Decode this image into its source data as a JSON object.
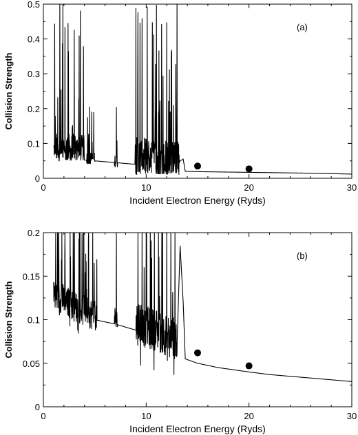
{
  "chart_data": [
    {
      "type": "line",
      "panel_label": "(a)",
      "xlabel": "Incident Electron Energy (Ryds)",
      "ylabel": "Collision Strength",
      "xlim": [
        0,
        30
      ],
      "ylim": [
        0,
        0.5
      ],
      "x_ticks": [
        0,
        10,
        20,
        30
      ],
      "y_ticks": [
        0,
        0.1,
        0.2,
        0.3,
        0.4,
        0.5
      ],
      "x_tick_labels": [
        "0",
        "10",
        "20",
        "30"
      ],
      "y_tick_labels": [
        "0",
        "0.1",
        "0.2",
        "0.3",
        "0.4",
        "0.5"
      ],
      "grid": false,
      "background": {
        "x": [
          1.0,
          3.0,
          5.0,
          7.0,
          9.0,
          11.0,
          12.0,
          13.0,
          13.3,
          13.6,
          13.8,
          15,
          20,
          25,
          30
        ],
        "y": [
          0.058,
          0.055,
          0.05,
          0.045,
          0.04,
          0.035,
          0.03,
          0.028,
          0.05,
          0.055,
          0.02,
          0.019,
          0.017,
          0.015,
          0.012
        ]
      },
      "resonance_regions": [
        {
          "x_from": 1.0,
          "x_to": 4.0,
          "y_low": 0.05,
          "y_high": 0.5,
          "peaks": [
            1.1,
            1.6,
            1.9,
            2.1,
            2.4,
            3.0,
            3.6
          ]
        },
        {
          "x_from": 4.2,
          "x_to": 5.0,
          "y_low": 0.04,
          "y_high": 0.19,
          "peaks": [
            4.3,
            4.5,
            4.7,
            4.9
          ]
        },
        {
          "x_from": 6.9,
          "x_to": 7.2,
          "y_low": 0.03,
          "y_high": 0.19,
          "peaks": [
            7.1
          ]
        },
        {
          "x_from": 8.9,
          "x_to": 13.2,
          "y_low": 0.01,
          "y_high": 0.5,
          "peaks": [
            9.0,
            9.2,
            9.4,
            9.6,
            10.1,
            10.6,
            11.0,
            11.5,
            12.0,
            13.0
          ]
        }
      ],
      "markers": {
        "x": [
          15,
          20
        ],
        "y": [
          0.035,
          0.027
        ]
      }
    },
    {
      "type": "line",
      "panel_label": "(b)",
      "xlabel": "Incident Electron Energy (Ryds)",
      "ylabel": "Collision Strength",
      "xlim": [
        0,
        30
      ],
      "ylim": [
        0,
        0.2
      ],
      "x_ticks": [
        0,
        10,
        20,
        30
      ],
      "y_ticks": [
        0,
        0.05,
        0.1,
        0.15,
        0.2
      ],
      "x_tick_labels": [
        "0",
        "10",
        "20",
        "30"
      ],
      "y_tick_labels": [
        "0",
        "0.05",
        "0.1",
        "0.15",
        "0.2"
      ],
      "grid": false,
      "background": {
        "x": [
          1.0,
          3.0,
          5.0,
          7.0,
          9.0,
          11.0,
          12.0,
          13.0,
          13.3,
          13.6,
          13.8,
          15,
          17,
          20,
          22,
          25,
          28,
          30
        ],
        "y": [
          0.125,
          0.11,
          0.1,
          0.095,
          0.088,
          0.08,
          0.075,
          0.07,
          0.185,
          0.12,
          0.055,
          0.05,
          0.045,
          0.04,
          0.037,
          0.034,
          0.031,
          0.029
        ]
      },
      "resonance_regions": [
        {
          "x_from": 1.0,
          "x_to": 5.2,
          "y_low": 0.055,
          "y_high": 0.2,
          "peaks": [
            1.2,
            1.5,
            1.8,
            2.1,
            2.6,
            3.0,
            3.5,
            3.9,
            4.4,
            4.8
          ]
        },
        {
          "x_from": 6.9,
          "x_to": 7.2,
          "y_low": 0.07,
          "y_high": 0.2,
          "peaks": [
            7.1
          ]
        },
        {
          "x_from": 9.0,
          "x_to": 13.0,
          "y_low": 0.003,
          "y_high": 0.2,
          "peaks": [
            9.2,
            9.6,
            10.0,
            10.4,
            10.8,
            11.2,
            11.6,
            12.0,
            12.4,
            12.8
          ]
        }
      ],
      "markers": {
        "x": [
          15,
          20
        ],
        "y": [
          0.062,
          0.047
        ]
      }
    }
  ]
}
